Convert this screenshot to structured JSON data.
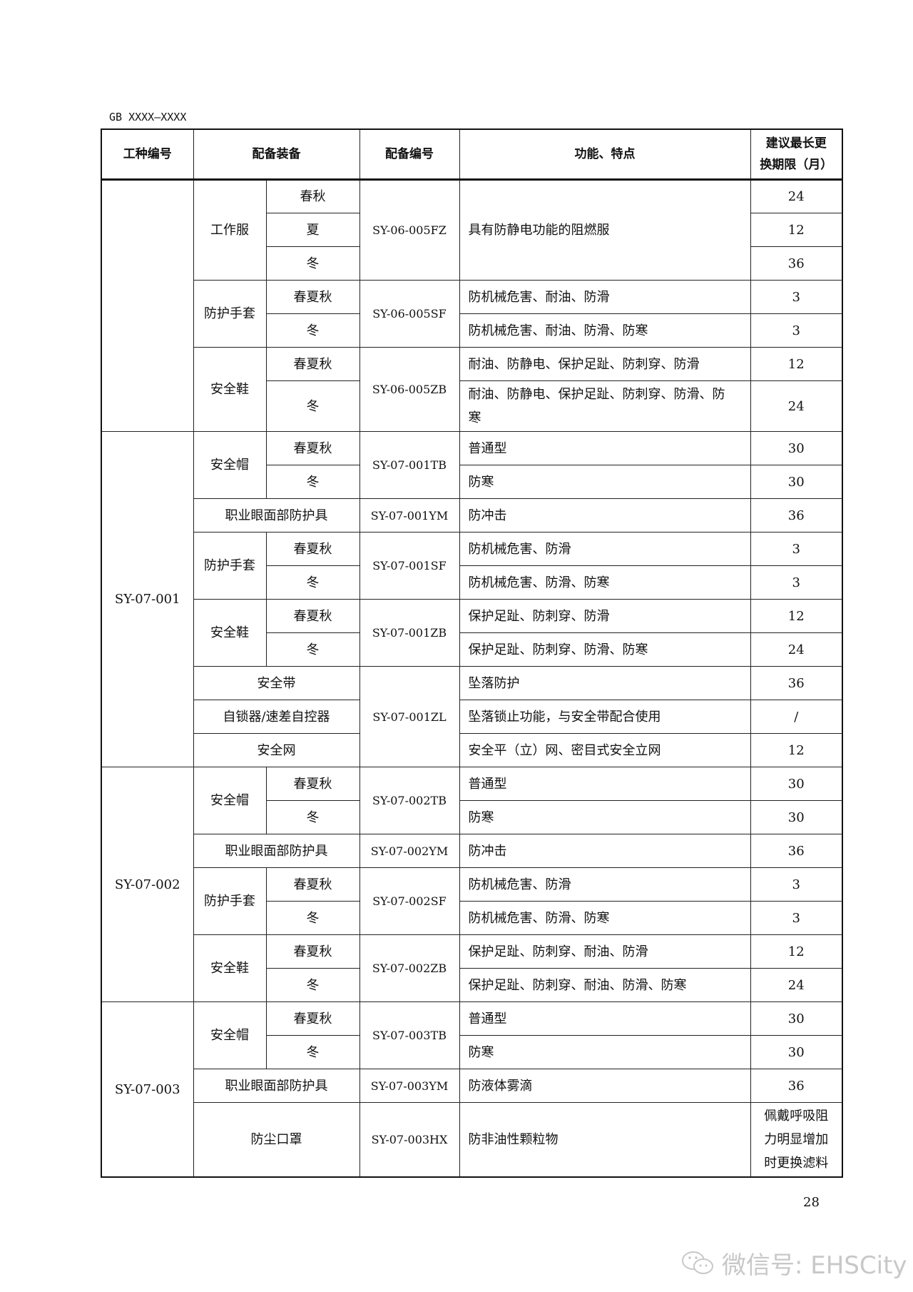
{
  "doc_header": "GB XXXX—XXXX",
  "headers": {
    "job": "工种编号",
    "equip": "配备装备",
    "code": "配备编号",
    "func": "功能、特点",
    "period_line1": "建议最长更",
    "period_line2": "换期限（月）"
  },
  "groups": [
    {
      "job": "",
      "codes": [
        {
          "code": "SY-06-005FZ",
          "items": [
            {
              "equip": "工作服",
              "func": "具有防静电功能的阻燃服",
              "rows": [
                {
                  "season": "春秋",
                  "period": "24"
                },
                {
                  "season": "夏",
                  "period": "12"
                },
                {
                  "season": "冬",
                  "period": "36"
                }
              ]
            }
          ]
        },
        {
          "code": "SY-06-005SF",
          "items": [
            {
              "equip": "防护手套",
              "rows": [
                {
                  "season": "春夏秋",
                  "func": "防机械危害、耐油、防滑",
                  "period": "3"
                },
                {
                  "season": "冬",
                  "func": "防机械危害、耐油、防滑、防寒",
                  "period": "3"
                }
              ]
            }
          ]
        },
        {
          "code": "SY-06-005ZB",
          "items": [
            {
              "equip": "安全鞋",
              "rows": [
                {
                  "season": "春夏秋",
                  "func": "耐油、防静电、保护足趾、防刺穿、防滑",
                  "period": "12"
                },
                {
                  "season": "冬",
                  "func": "耐油、防静电、保护足趾、防刺穿、防滑、防寒",
                  "period": "24"
                }
              ]
            }
          ]
        }
      ]
    },
    {
      "job": "SY-07-001",
      "codes": [
        {
          "code": "SY-07-001TB",
          "items": [
            {
              "equip": "安全帽",
              "rows": [
                {
                  "season": "春夏秋",
                  "func": "普通型",
                  "period": "30"
                },
                {
                  "season": "冬",
                  "func": "防寒",
                  "period": "30"
                }
              ]
            }
          ]
        },
        {
          "code": "SY-07-001YM",
          "items": [
            {
              "equip": "职业眼面部防护具",
              "rows": [
                {
                  "func": "防冲击",
                  "period": "36"
                }
              ]
            }
          ]
        },
        {
          "code": "SY-07-001SF",
          "items": [
            {
              "equip": "防护手套",
              "rows": [
                {
                  "season": "春夏秋",
                  "func": "防机械危害、防滑",
                  "period": "3"
                },
                {
                  "season": "冬",
                  "func": "防机械危害、防滑、防寒",
                  "period": "3"
                }
              ]
            }
          ]
        },
        {
          "code": "SY-07-001ZB",
          "items": [
            {
              "equip": "安全鞋",
              "rows": [
                {
                  "season": "春夏秋",
                  "func": "保护足趾、防刺穿、防滑",
                  "period": "12"
                },
                {
                  "season": "冬",
                  "func": "保护足趾、防刺穿、防滑、防寒",
                  "period": "24"
                }
              ]
            }
          ]
        },
        {
          "code": "SY-07-001ZL",
          "items": [
            {
              "equip": "安全带",
              "rows": [
                {
                  "func": "坠落防护",
                  "period": "36"
                }
              ]
            },
            {
              "equip": "自锁器/速差自控器",
              "rows": [
                {
                  "func": "坠落锁止功能，与安全带配合使用",
                  "period": "/"
                }
              ]
            },
            {
              "equip": "安全网",
              "rows": [
                {
                  "func": "安全平（立）网、密目式安全立网",
                  "period": "12"
                }
              ]
            }
          ]
        }
      ]
    },
    {
      "job": "SY-07-002",
      "codes": [
        {
          "code": "SY-07-002TB",
          "items": [
            {
              "equip": "安全帽",
              "rows": [
                {
                  "season": "春夏秋",
                  "func": "普通型",
                  "period": "30"
                },
                {
                  "season": "冬",
                  "func": "防寒",
                  "period": "30"
                }
              ]
            }
          ]
        },
        {
          "code": "SY-07-002YM",
          "items": [
            {
              "equip": "职业眼面部防护具",
              "rows": [
                {
                  "func": "防冲击",
                  "period": "36"
                }
              ]
            }
          ]
        },
        {
          "code": "SY-07-002SF",
          "items": [
            {
              "equip": "防护手套",
              "rows": [
                {
                  "season": "春夏秋",
                  "func": "防机械危害、防滑",
                  "period": "3"
                },
                {
                  "season": "冬",
                  "func": "防机械危害、防滑、防寒",
                  "period": "3"
                }
              ]
            }
          ]
        },
        {
          "code": "SY-07-002ZB",
          "items": [
            {
              "equip": "安全鞋",
              "rows": [
                {
                  "season": "春夏秋",
                  "func": "保护足趾、防刺穿、耐油、防滑",
                  "period": "12"
                },
                {
                  "season": "冬",
                  "func": "保护足趾、防刺穿、耐油、防滑、防寒",
                  "period": "24"
                }
              ]
            }
          ]
        }
      ]
    },
    {
      "job": "SY-07-003",
      "codes": [
        {
          "code": "SY-07-003TB",
          "items": [
            {
              "equip": "安全帽",
              "rows": [
                {
                  "season": "春夏秋",
                  "func": "普通型",
                  "period": "30"
                },
                {
                  "season": "冬",
                  "func": "防寒",
                  "period": "30"
                }
              ]
            }
          ]
        },
        {
          "code": "SY-07-003YM",
          "items": [
            {
              "equip": "职业眼面部防护具",
              "rows": [
                {
                  "func": "防液体雾滴",
                  "period": "36"
                }
              ]
            }
          ]
        },
        {
          "code": "SY-07-003HX",
          "items": [
            {
              "equip": "防尘口罩",
              "rows": [
                {
                  "func": "防非油性颗粒物",
                  "period": "佩戴呼吸阻力明显增加时更换滤料"
                }
              ]
            }
          ]
        }
      ]
    }
  ],
  "page_number": "28",
  "watermark": {
    "text": "微信号: EHSCity",
    "icon": "wechat-icon"
  }
}
